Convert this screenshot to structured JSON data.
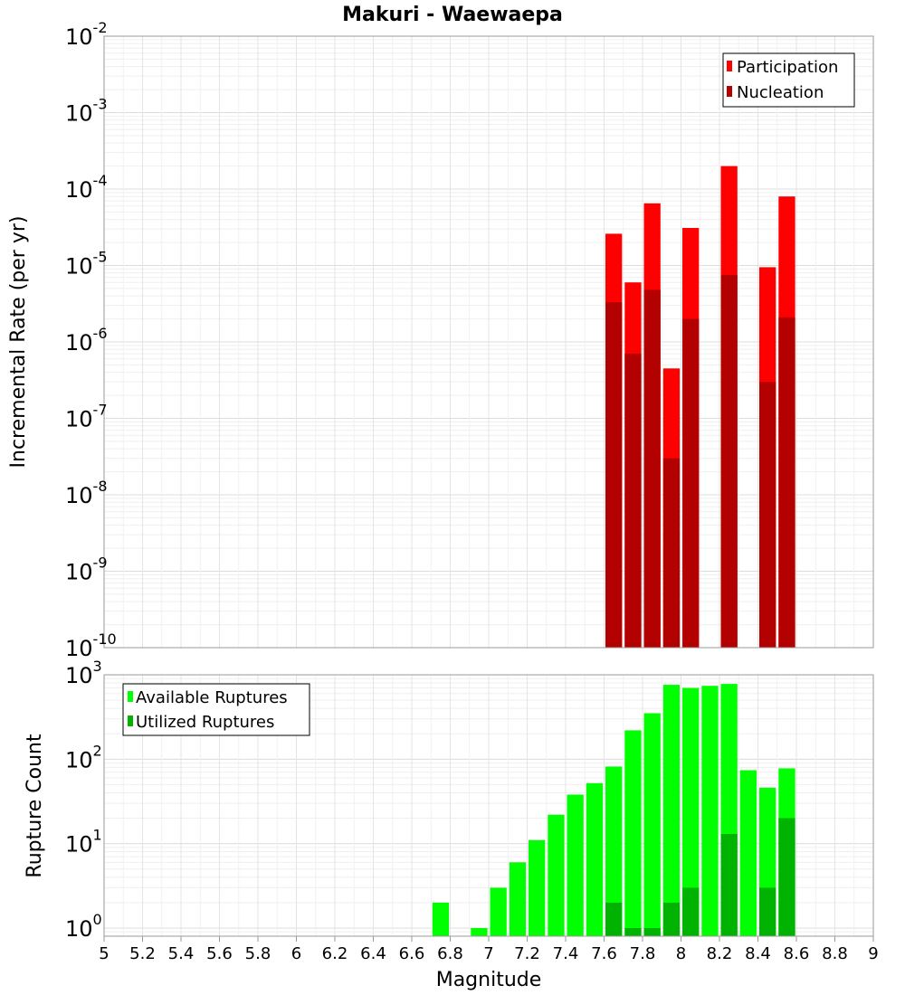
{
  "chart_data": [
    {
      "type": "bar",
      "title": "Makuri - Waewaepa",
      "ylabel": "Incremental Rate (per yr)",
      "xlabel": "",
      "yscale": "log",
      "ylim": [
        1e-10,
        0.01
      ],
      "xlim": [
        5,
        9
      ],
      "legend_position": "top-right",
      "grid": true,
      "y_tick_exponents": [
        "-10",
        "-9",
        "-8",
        "-7",
        "-6",
        "-5",
        "-4",
        "-3",
        "-2"
      ],
      "x": [
        7.65,
        7.75,
        7.85,
        7.95,
        8.05,
        8.25,
        8.45,
        8.55
      ],
      "series": [
        {
          "name": "Participation",
          "color": "#ff0000",
          "values": [
            2.6e-05,
            6e-06,
            6.5e-05,
            4.5e-07,
            3.1e-05,
            0.0002,
            9.5e-06,
            8e-05
          ]
        },
        {
          "name": "Nucleation",
          "color": "#b30000",
          "values": [
            3.3e-06,
            7e-07,
            4.8e-06,
            3e-08,
            2e-06,
            7.5e-06,
            3e-07,
            2.1e-06
          ]
        }
      ]
    },
    {
      "type": "bar",
      "title": "",
      "ylabel": "Rupture Count",
      "xlabel": "Magnitude",
      "yscale": "log",
      "ylim": [
        0.8,
        1000
      ],
      "xlim": [
        5,
        9
      ],
      "legend_position": "top-left",
      "grid": true,
      "y_tick_exponents": [
        "0",
        "1",
        "2",
        "3"
      ],
      "x_ticks": [
        "5",
        "5.2",
        "5.4",
        "5.6",
        "5.8",
        "6",
        "6.2",
        "6.4",
        "6.6",
        "6.8",
        "7",
        "7.2",
        "7.4",
        "7.6",
        "7.8",
        "8",
        "8.2",
        "8.4",
        "8.6",
        "8.8",
        "9"
      ],
      "x": [
        6.75,
        6.95,
        7.05,
        7.15,
        7.25,
        7.35,
        7.45,
        7.55,
        7.65,
        7.75,
        7.85,
        7.95,
        8.05,
        8.15,
        8.25,
        8.35,
        8.45,
        8.55
      ],
      "series": [
        {
          "name": "Available Ruptures",
          "color": "#00ff00",
          "values": [
            2,
            1,
            3,
            6,
            11,
            22,
            38,
            52,
            82,
            220,
            350,
            760,
            700,
            740,
            780,
            74,
            46,
            78
          ]
        },
        {
          "name": "Utilized Ruptures",
          "color": "#00b300",
          "values": [
            null,
            null,
            null,
            null,
            null,
            null,
            null,
            null,
            2,
            1,
            1,
            2,
            3,
            null,
            13,
            null,
            3,
            20
          ]
        }
      ]
    }
  ]
}
